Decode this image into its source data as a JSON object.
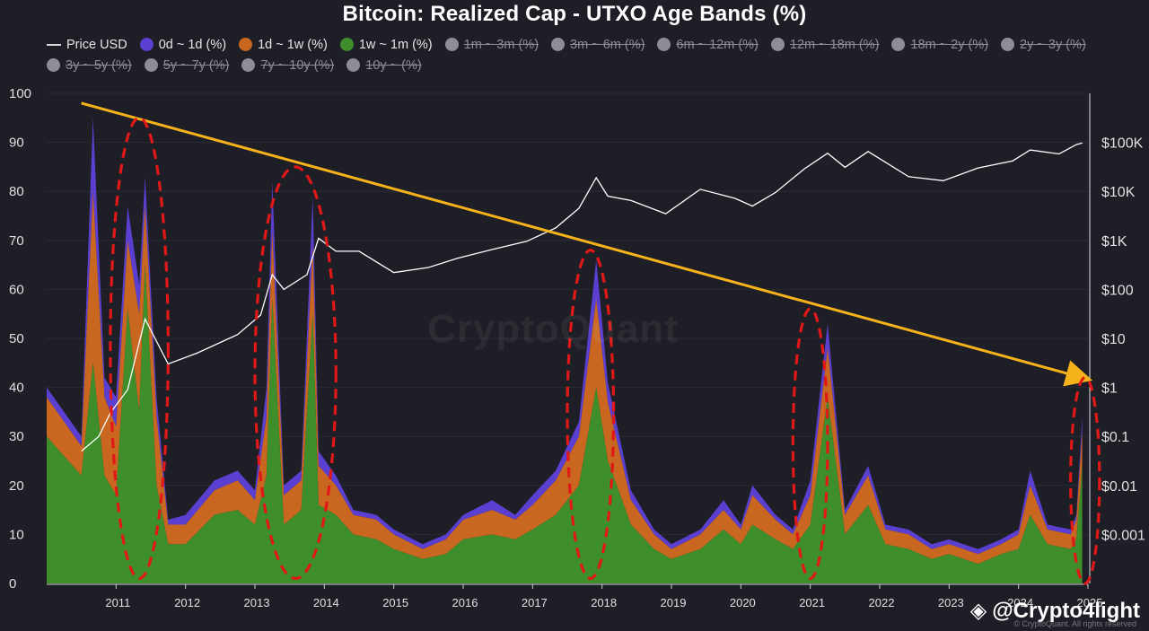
{
  "chart_title": "Bitcoin: Realized Cap - UTXO Age Bands (%)",
  "watermark": "CryptoQuant",
  "handle": "@Crypto4light",
  "handle_icon": "binance-logo-icon",
  "copyright": "© CryptoQuant. All rights reserved",
  "colors": {
    "background": "#1e1e26",
    "band_0d_1d": "#5b3fd0",
    "band_1d_1w": "#c9661f",
    "band_1w_1m": "#3e8e2c",
    "price": "#ffffff",
    "disabled": "#8d8d96",
    "trendline": "#f5b21b",
    "highlight": "#e01818"
  },
  "legend": [
    {
      "label": "Price USD",
      "enabled": true,
      "swatch": "line",
      "color": "#d8d8d8"
    },
    {
      "label": "0d ~ 1d (%)",
      "enabled": true,
      "swatch": "dot",
      "color": "#5b3fd0"
    },
    {
      "label": "1d ~ 1w (%)",
      "enabled": true,
      "swatch": "dot",
      "color": "#c9661f"
    },
    {
      "label": "1w ~ 1m (%)",
      "enabled": true,
      "swatch": "dot",
      "color": "#3e8e2c"
    },
    {
      "label": "1m ~ 3m (%)",
      "enabled": false,
      "swatch": "dot",
      "color": "#8d8d96"
    },
    {
      "label": "3m ~ 6m (%)",
      "enabled": false,
      "swatch": "dot",
      "color": "#8d8d96"
    },
    {
      "label": "6m ~ 12m (%)",
      "enabled": false,
      "swatch": "dot",
      "color": "#8d8d96"
    },
    {
      "label": "12m ~ 18m (%)",
      "enabled": false,
      "swatch": "dot",
      "color": "#8d8d96"
    },
    {
      "label": "18m ~ 2y (%)",
      "enabled": false,
      "swatch": "dot",
      "color": "#8d8d96"
    },
    {
      "label": "2y ~ 3y (%)",
      "enabled": false,
      "swatch": "dot",
      "color": "#8d8d96"
    },
    {
      "label": "3y ~ 5y (%)",
      "enabled": false,
      "swatch": "dot",
      "color": "#8d8d96"
    },
    {
      "label": "5y ~ 7y (%)",
      "enabled": false,
      "swatch": "dot",
      "color": "#8d8d96"
    },
    {
      "label": "7y ~ 10y (%)",
      "enabled": false,
      "swatch": "dot",
      "color": "#8d8d96"
    },
    {
      "label": "10y ~ (%)",
      "enabled": false,
      "swatch": "dot",
      "color": "#8d8d96"
    }
  ],
  "chart_data": {
    "type": "area",
    "title": "Bitcoin: Realized Cap - UTXO Age Bands (%)",
    "x_axis": {
      "type": "date",
      "range": [
        "2010-01-01",
        "2025-01-01"
      ],
      "tick_labels": [
        "2011",
        "2012",
        "2013",
        "2014",
        "2015",
        "2016",
        "2017",
        "2018",
        "2019",
        "2020",
        "2021",
        "2022",
        "2023",
        "2024",
        "2025"
      ],
      "tick_dates": [
        "2011-01-01",
        "2012-01-01",
        "2013-01-01",
        "2014-01-01",
        "2015-01-01",
        "2016-01-01",
        "2017-01-01",
        "2018-01-01",
        "2019-01-01",
        "2020-01-01",
        "2021-01-01",
        "2022-01-01",
        "2023-01-01",
        "2024-01-01",
        "2025-01-01"
      ]
    },
    "y_left": {
      "range": [
        0,
        100
      ],
      "ticks": [
        0,
        10,
        20,
        30,
        40,
        50,
        60,
        70,
        80,
        90,
        100
      ]
    },
    "y_right": {
      "scale": "log",
      "range": [
        0.0001,
        1000000
      ],
      "ticks": [
        0.001,
        0.01,
        0.1,
        1,
        10,
        100,
        1000,
        10000,
        100000
      ],
      "tick_labels": [
        "$0.001",
        "$0.01",
        "$0.1",
        "$1",
        "$10",
        "$100",
        "$1K",
        "$10K",
        "$100K"
      ]
    },
    "x": [
      "2010-01",
      "2010-07",
      "2010-09",
      "2010-11",
      "2011-01",
      "2011-03",
      "2011-05",
      "2011-06",
      "2011-08",
      "2011-10",
      "2012-01",
      "2012-06",
      "2012-10",
      "2013-01",
      "2013-03",
      "2013-04",
      "2013-06",
      "2013-09",
      "2013-11",
      "2013-12",
      "2014-03",
      "2014-06",
      "2014-10",
      "2015-01",
      "2015-06",
      "2015-10",
      "2016-01",
      "2016-06",
      "2016-10",
      "2017-01",
      "2017-05",
      "2017-09",
      "2017-12",
      "2018-02",
      "2018-06",
      "2018-10",
      "2019-01",
      "2019-06",
      "2019-10",
      "2020-01",
      "2020-03",
      "2020-07",
      "2020-10",
      "2021-01",
      "2021-04",
      "2021-07",
      "2021-11",
      "2022-02",
      "2022-06",
      "2022-10",
      "2023-01",
      "2023-06",
      "2023-10",
      "2024-01",
      "2024-03",
      "2024-06",
      "2024-10",
      "2024-11",
      "2024-12"
    ],
    "series": [
      {
        "name": "1w ~ 1m (%)",
        "values": [
          30,
          22,
          45,
          22,
          18,
          56,
          35,
          65,
          20,
          8,
          8,
          14,
          15,
          12,
          22,
          58,
          12,
          15,
          55,
          16,
          14,
          10,
          9,
          7,
          5,
          6,
          9,
          10,
          9,
          11,
          14,
          20,
          40,
          25,
          12,
          7,
          5,
          7,
          11,
          8,
          12,
          9,
          7,
          12,
          38,
          10,
          16,
          8,
          7,
          5,
          6,
          4,
          6,
          7,
          14,
          8,
          7,
          9,
          24
        ]
      },
      {
        "name": "1d ~ 1w (%)",
        "values": [
          8,
          6,
          35,
          16,
          14,
          14,
          20,
          12,
          14,
          4,
          4,
          5,
          6,
          5,
          12,
          14,
          6,
          6,
          14,
          8,
          6,
          4,
          4,
          3,
          2,
          3,
          4,
          5,
          4,
          5,
          7,
          10,
          18,
          12,
          5,
          3,
          2,
          3,
          4,
          3,
          6,
          4,
          3,
          6,
          10,
          4,
          6,
          3,
          3,
          2,
          2,
          2,
          2,
          3,
          6,
          3,
          3,
          4,
          7
        ]
      },
      {
        "name": "0d ~ 1d (%)",
        "values": [
          2,
          2,
          15,
          4,
          6,
          7,
          6,
          6,
          4,
          1,
          2,
          2,
          2,
          2,
          6,
          10,
          2,
          2,
          10,
          3,
          2,
          1,
          1,
          1,
          1,
          1,
          1,
          2,
          1,
          2,
          2,
          3,
          8,
          4,
          2,
          1,
          1,
          1,
          2,
          1,
          2,
          1,
          1,
          3,
          5,
          1,
          2,
          1,
          1,
          1,
          1,
          1,
          1,
          1,
          3,
          1,
          1,
          1,
          3
        ]
      },
      {
        "name": "Price USD",
        "axis": "right",
        "points": [
          [
            "2010-07",
            0.05
          ],
          [
            "2010-10",
            0.1
          ],
          [
            "2010-12",
            0.3
          ],
          [
            "2011-03",
            0.9
          ],
          [
            "2011-06",
            25
          ],
          [
            "2011-10",
            3
          ],
          [
            "2012-03",
            5
          ],
          [
            "2012-10",
            12
          ],
          [
            "2013-02",
            30
          ],
          [
            "2013-04",
            200
          ],
          [
            "2013-06",
            100
          ],
          [
            "2013-10",
            200
          ],
          [
            "2013-12",
            1100
          ],
          [
            "2014-03",
            600
          ],
          [
            "2014-07",
            600
          ],
          [
            "2015-01",
            220
          ],
          [
            "2015-07",
            280
          ],
          [
            "2015-12",
            430
          ],
          [
            "2016-06",
            650
          ],
          [
            "2016-12",
            960
          ],
          [
            "2017-05",
            1800
          ],
          [
            "2017-09",
            4500
          ],
          [
            "2017-12",
            19000
          ],
          [
            "2018-02",
            8000
          ],
          [
            "2018-06",
            6500
          ],
          [
            "2018-12",
            3500
          ],
          [
            "2019-06",
            11000
          ],
          [
            "2019-12",
            7200
          ],
          [
            "2020-03",
            5000
          ],
          [
            "2020-07",
            9500
          ],
          [
            "2020-12",
            29000
          ],
          [
            "2021-04",
            60000
          ],
          [
            "2021-07",
            31000
          ],
          [
            "2021-11",
            65000
          ],
          [
            "2022-06",
            20000
          ],
          [
            "2022-12",
            16500
          ],
          [
            "2023-06",
            30000
          ],
          [
            "2023-12",
            42000
          ],
          [
            "2024-03",
            70000
          ],
          [
            "2024-08",
            58000
          ],
          [
            "2024-11",
            90000
          ],
          [
            "2024-12",
            97000
          ]
        ]
      }
    ],
    "annotations": {
      "trendline": {
        "from": [
          "2010-07",
          98
        ],
        "to": [
          "2024-12",
          42
        ],
        "arrow": true
      },
      "highlighted_peaks": [
        {
          "center": [
            "2011-05",
            48
          ],
          "x_span": [
            "2010-12",
            "2011-10"
          ],
          "y_span": [
            1,
            95
          ]
        },
        {
          "center": [
            "2013-09",
            42
          ],
          "x_span": [
            "2013-01",
            "2014-03"
          ],
          "y_span": [
            1,
            85
          ]
        },
        {
          "center": [
            "2017-12",
            37
          ],
          "x_span": [
            "2017-07",
            "2018-03"
          ],
          "y_span": [
            1,
            68
          ]
        },
        {
          "center": [
            "2021-01",
            31
          ],
          "x_span": [
            "2020-10",
            "2021-04"
          ],
          "y_span": [
            1,
            56
          ]
        },
        {
          "center": [
            "2024-12",
            21
          ],
          "x_span": [
            "2024-10",
            "2025-03"
          ],
          "y_span": [
            0,
            42
          ]
        }
      ]
    }
  }
}
